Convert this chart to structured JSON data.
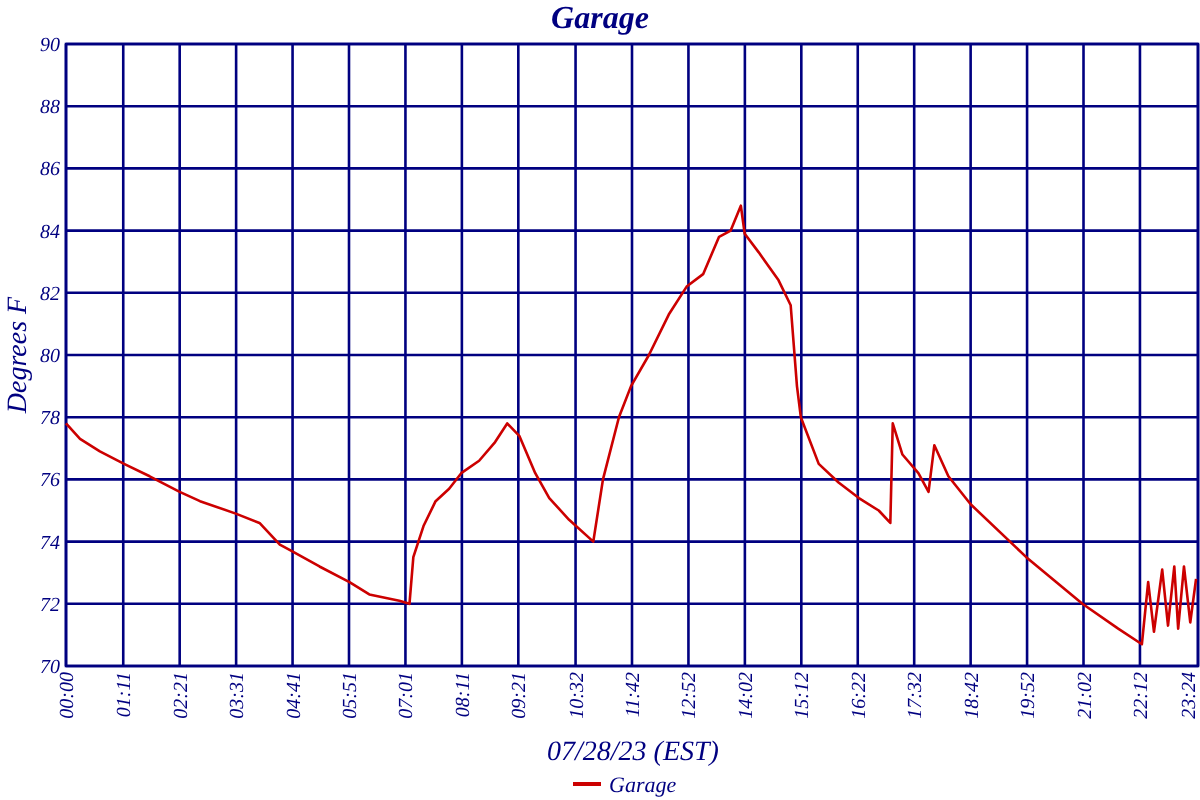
{
  "chart_data": {
    "type": "line",
    "title": "Garage",
    "xlabel": "07/28/23 (EST)",
    "ylabel": "Degrees F",
    "xlim": [
      0,
      23.4
    ],
    "ylim": [
      70,
      90
    ],
    "yticks": [
      70,
      72,
      74,
      76,
      78,
      80,
      82,
      84,
      86,
      88,
      90
    ],
    "xticks": [
      {
        "value": 0,
        "label": "00:00"
      },
      {
        "value": 1.1833,
        "label": "01:11"
      },
      {
        "value": 2.35,
        "label": "02:21"
      },
      {
        "value": 3.5167,
        "label": "03:31"
      },
      {
        "value": 4.6833,
        "label": "04:41"
      },
      {
        "value": 5.85,
        "label": "05:51"
      },
      {
        "value": 7.0167,
        "label": "07:01"
      },
      {
        "value": 8.1833,
        "label": "08:11"
      },
      {
        "value": 9.35,
        "label": "09:21"
      },
      {
        "value": 10.5333,
        "label": "10:32"
      },
      {
        "value": 11.7,
        "label": "11:42"
      },
      {
        "value": 12.8667,
        "label": "12:52"
      },
      {
        "value": 14.0333,
        "label": "14:02"
      },
      {
        "value": 15.2,
        "label": "15:12"
      },
      {
        "value": 16.3667,
        "label": "16:22"
      },
      {
        "value": 17.5333,
        "label": "17:32"
      },
      {
        "value": 18.7,
        "label": "18:42"
      },
      {
        "value": 19.8667,
        "label": "19:52"
      },
      {
        "value": 21.0333,
        "label": "21:02"
      },
      {
        "value": 22.2,
        "label": "22:12"
      },
      {
        "value": 23.4,
        "label": "23:24"
      }
    ],
    "grid": true,
    "legend": "bottom",
    "marker": "none",
    "line_style": "solid",
    "series": [
      {
        "name": "Garage",
        "color": "#cc0000",
        "x": [
          0,
          0.29,
          0.7,
          1.2,
          1.73,
          2.35,
          2.77,
          3.51,
          4.0,
          4.42,
          4.66,
          5.24,
          5.86,
          6.27,
          6.89,
          7.1,
          7.18,
          7.39,
          7.64,
          7.92,
          8.17,
          8.54,
          8.87,
          9.12,
          9.37,
          9.7,
          9.99,
          10.4,
          10.9,
          11.1,
          11.43,
          11.68,
          12.05,
          12.46,
          12.83,
          13.17,
          13.5,
          13.74,
          13.95,
          14.03,
          14.32,
          14.73,
          14.98,
          15.11,
          15.19,
          15.56,
          15.97,
          16.39,
          16.8,
          17.04,
          17.09,
          17.29,
          17.62,
          17.83,
          17.95,
          18.24,
          18.7,
          19.85,
          21.01,
          21.75,
          22.24,
          22.37,
          22.49,
          22.66,
          22.78,
          22.91,
          22.99,
          23.11,
          23.24,
          23.36
        ],
        "values": [
          77.8,
          77.3,
          76.9,
          76.5,
          76.1,
          75.6,
          75.3,
          74.9,
          74.6,
          73.9,
          73.7,
          73.2,
          72.7,
          72.3,
          72.1,
          72.0,
          73.5,
          74.5,
          75.3,
          75.7,
          76.2,
          76.6,
          77.2,
          77.8,
          77.4,
          76.2,
          75.4,
          74.7,
          74.0,
          76.0,
          78.0,
          79.0,
          80.0,
          81.3,
          82.2,
          82.6,
          83.8,
          84.0,
          84.8,
          83.9,
          83.3,
          82.4,
          81.6,
          79.0,
          78.0,
          76.5,
          75.9,
          75.4,
          75.0,
          74.6,
          77.8,
          76.8,
          76.2,
          75.6,
          77.1,
          76.1,
          75.2,
          73.5,
          72.0,
          71.2,
          70.7,
          72.7,
          71.1,
          73.1,
          71.3,
          73.2,
          71.2,
          73.2,
          71.4,
          72.8
        ]
      }
    ]
  }
}
